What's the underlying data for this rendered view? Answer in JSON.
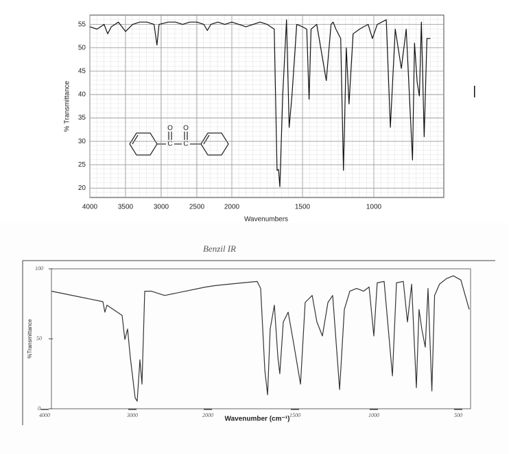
{
  "chart_data": [
    {
      "type": "line",
      "xlabel": "Wavenumbers",
      "ylabel": "% Transmittance",
      "xlim": [
        4000,
        500
      ],
      "xticks": [
        4000,
        3500,
        3000,
        2500,
        2000,
        1500,
        1000
      ],
      "ylim": [
        18,
        57
      ],
      "yticks": [
        20,
        25,
        30,
        35,
        40,
        45,
        50,
        55
      ],
      "grid": true,
      "series": [
        {
          "color": "#111111",
          "x": [
            4000,
            3900,
            3800,
            3750,
            3700,
            3600,
            3500,
            3400,
            3300,
            3200,
            3100,
            3060,
            3030,
            2900,
            2800,
            2700,
            2600,
            2500,
            2400,
            2350,
            2300,
            2200,
            2100,
            2000,
            1900,
            1800,
            1750,
            1700,
            1680,
            1670,
            1660,
            1640,
            1613,
            1594,
            1575,
            1541,
            1500,
            1470,
            1454,
            1440,
            1400,
            1333,
            1300,
            1285,
            1266,
            1232,
            1213,
            1193,
            1174,
            1145,
            1100,
            1072,
            1040,
            1010,
            976,
            913,
            884,
            850,
            807,
            773,
            729,
            715,
            696,
            681,
            667,
            647,
            628,
            604
          ],
          "values": [
            54.5,
            54,
            55,
            53,
            54.5,
            55.5,
            53.5,
            55,
            55.5,
            55.5,
            55,
            50.6,
            55,
            55.5,
            55.5,
            55,
            55.5,
            55.5,
            55,
            53.7,
            55,
            55.5,
            55,
            55.5,
            54.5,
            55.5,
            55,
            54,
            23.8,
            24,
            20.3,
            40,
            56,
            33,
            39.7,
            55,
            54.5,
            54,
            39,
            54,
            55,
            43,
            55,
            55.5,
            54,
            52,
            23.8,
            50,
            38,
            53,
            54,
            54.5,
            55,
            52,
            55,
            56,
            33,
            54,
            45.6,
            54,
            26,
            51,
            42.6,
            39.7,
            55.5,
            31,
            52,
            52
          ]
        }
      ]
    },
    {
      "type": "line",
      "title": "Benzil IR",
      "xlabel": "Wavenumber (cm⁻¹)",
      "ylabel": "%Transmittance",
      "xlim": [
        4000,
        430
      ],
      "xticks": [
        4000,
        3000,
        2000,
        1500,
        1000,
        500
      ],
      "ylim": [
        0,
        100
      ],
      "yticks": [
        0,
        50,
        100
      ],
      "grid": false,
      "series": [
        {
          "color": "#333333",
          "x": [
            3920,
            3336,
            3313,
            3290,
            3117,
            3086,
            3055,
            3024,
            2964,
            2936,
            2900,
            2873,
            2836,
            2750,
            2573,
            2027,
            1960,
            1880,
            1800,
            1717,
            1697,
            1673,
            1657,
            1642,
            1618,
            1598,
            1587,
            1567,
            1539,
            1508,
            1465,
            1435,
            1391,
            1361,
            1326,
            1291,
            1261,
            1217,
            1187,
            1152,
            1109,
            1065,
            1030,
            1000,
            980,
            939,
            890,
            866,
            825,
            801,
            776,
            748,
            732,
            716,
            695,
            679,
            656,
            640,
            611,
            570,
            529,
            484,
            435
          ],
          "values": [
            84,
            76.5,
            69,
            74,
            66.7,
            49.5,
            57,
            37,
            7.8,
            5.4,
            35,
            17.6,
            84,
            84,
            81,
            87,
            88,
            89,
            90,
            91,
            86,
            27.5,
            10,
            57,
            74,
            37,
            25,
            62,
            69,
            47,
            17.6,
            76,
            81,
            62,
            52,
            76,
            81,
            13.7,
            71,
            84,
            86,
            84,
            87,
            52,
            90,
            91,
            23.5,
            90,
            91,
            62,
            89,
            15,
            71,
            57,
            44,
            86,
            12.7,
            81,
            89,
            93,
            95,
            92,
            71
          ]
        }
      ]
    }
  ]
}
